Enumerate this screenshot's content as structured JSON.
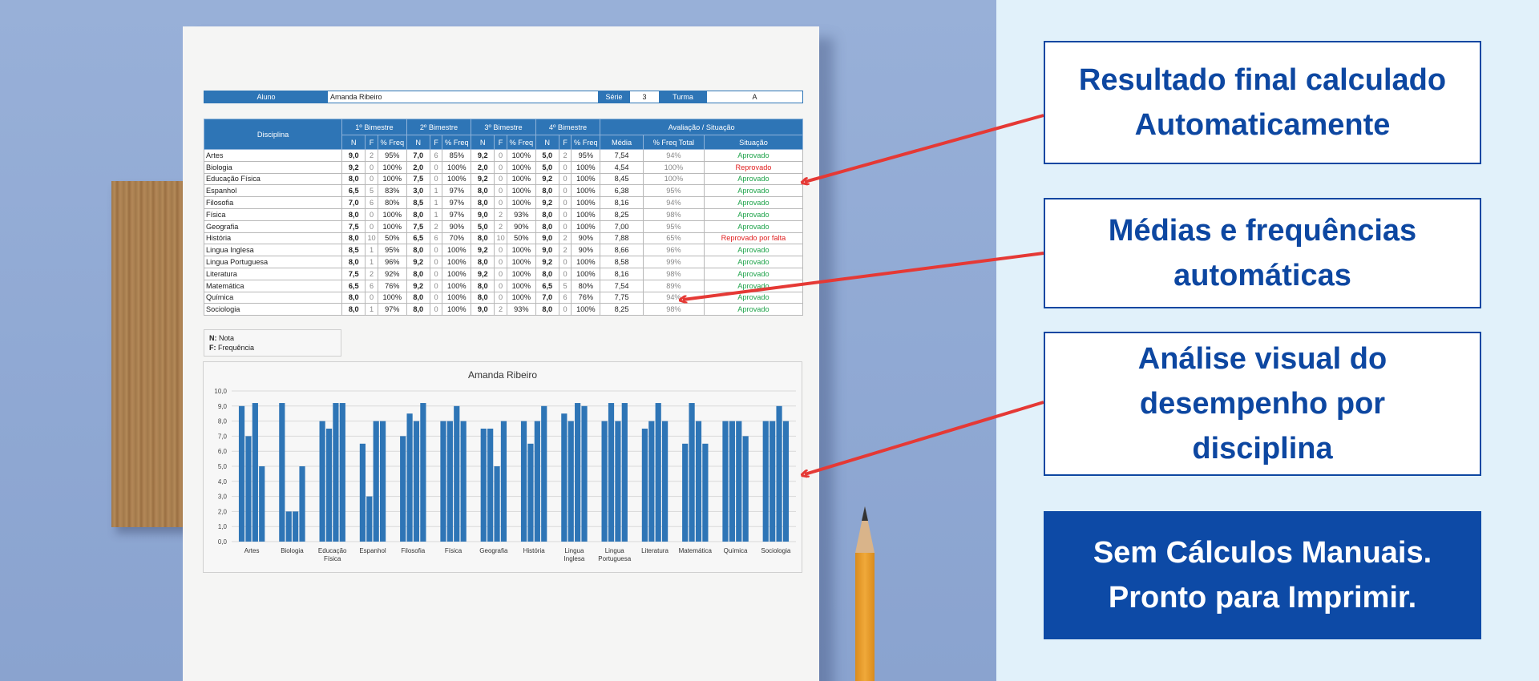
{
  "sheet": {
    "info": {
      "aluno_label": "Aluno",
      "aluno_value": "Amanda Ribeiro",
      "serie_label": "Série",
      "serie_value": "3",
      "turma_label": "Turma",
      "turma_value": "A"
    },
    "headers": {
      "disciplina": "Disciplina",
      "b1": "1º Bimestre",
      "b2": "2º Bimestre",
      "b3": "3º Bimestre",
      "b4": "4º Bimestre",
      "avaliacao": "Avaliação / Situação",
      "n": "N",
      "f": "F",
      "freq": "% Freq",
      "media": "Média",
      "freq_total": "% Freq Total",
      "situacao": "Situação"
    },
    "rows": [
      {
        "disciplina": "Artes",
        "b1": [
          "9,0",
          "2",
          "95%"
        ],
        "b2": [
          "7,0",
          "6",
          "85%"
        ],
        "b3": [
          "9,2",
          "0",
          "100%"
        ],
        "b4": [
          "5,0",
          "2",
          "95%"
        ],
        "media": "7,54",
        "freq_total": "94%",
        "situacao": "Aprovado",
        "status": "ok"
      },
      {
        "disciplina": "Biologia",
        "b1": [
          "9,2",
          "0",
          "100%"
        ],
        "b2": [
          "2,0",
          "0",
          "100%"
        ],
        "b3": [
          "2,0",
          "0",
          "100%"
        ],
        "b4": [
          "5,0",
          "0",
          "100%"
        ],
        "media": "4,54",
        "freq_total": "100%",
        "situacao": "Reprovado",
        "status": "bad"
      },
      {
        "disciplina": "Educação Física",
        "b1": [
          "8,0",
          "0",
          "100%"
        ],
        "b2": [
          "7,5",
          "0",
          "100%"
        ],
        "b3": [
          "9,2",
          "0",
          "100%"
        ],
        "b4": [
          "9,2",
          "0",
          "100%"
        ],
        "media": "8,45",
        "freq_total": "100%",
        "situacao": "Aprovado",
        "status": "ok"
      },
      {
        "disciplina": "Espanhol",
        "b1": [
          "6,5",
          "5",
          "83%"
        ],
        "b2": [
          "3,0",
          "1",
          "97%"
        ],
        "b3": [
          "8,0",
          "0",
          "100%"
        ],
        "b4": [
          "8,0",
          "0",
          "100%"
        ],
        "media": "6,38",
        "freq_total": "95%",
        "situacao": "Aprovado",
        "status": "ok"
      },
      {
        "disciplina": "Filosofia",
        "b1": [
          "7,0",
          "6",
          "80%"
        ],
        "b2": [
          "8,5",
          "1",
          "97%"
        ],
        "b3": [
          "8,0",
          "0",
          "100%"
        ],
        "b4": [
          "9,2",
          "0",
          "100%"
        ],
        "media": "8,16",
        "freq_total": "94%",
        "situacao": "Aprovado",
        "status": "ok"
      },
      {
        "disciplina": "Física",
        "b1": [
          "8,0",
          "0",
          "100%"
        ],
        "b2": [
          "8,0",
          "1",
          "97%"
        ],
        "b3": [
          "9,0",
          "2",
          "93%"
        ],
        "b4": [
          "8,0",
          "0",
          "100%"
        ],
        "media": "8,25",
        "freq_total": "98%",
        "situacao": "Aprovado",
        "status": "ok"
      },
      {
        "disciplina": "Geografia",
        "b1": [
          "7,5",
          "0",
          "100%"
        ],
        "b2": [
          "7,5",
          "2",
          "90%"
        ],
        "b3": [
          "5,0",
          "2",
          "90%"
        ],
        "b4": [
          "8,0",
          "0",
          "100%"
        ],
        "media": "7,00",
        "freq_total": "95%",
        "situacao": "Aprovado",
        "status": "ok"
      },
      {
        "disciplina": "História",
        "b1": [
          "8,0",
          "10",
          "50%"
        ],
        "b2": [
          "6,5",
          "6",
          "70%"
        ],
        "b3": [
          "8,0",
          "10",
          "50%"
        ],
        "b4": [
          "9,0",
          "2",
          "90%"
        ],
        "media": "7,88",
        "freq_total": "65%",
        "situacao": "Reprovado por falta",
        "status": "bad"
      },
      {
        "disciplina": "Lingua Inglesa",
        "b1": [
          "8,5",
          "1",
          "95%"
        ],
        "b2": [
          "8,0",
          "0",
          "100%"
        ],
        "b3": [
          "9,2",
          "0",
          "100%"
        ],
        "b4": [
          "9,0",
          "2",
          "90%"
        ],
        "media": "8,66",
        "freq_total": "96%",
        "situacao": "Aprovado",
        "status": "ok"
      },
      {
        "disciplina": "Lingua Portuguesa",
        "b1": [
          "8,0",
          "1",
          "96%"
        ],
        "b2": [
          "9,2",
          "0",
          "100%"
        ],
        "b3": [
          "8,0",
          "0",
          "100%"
        ],
        "b4": [
          "9,2",
          "0",
          "100%"
        ],
        "media": "8,58",
        "freq_total": "99%",
        "situacao": "Aprovado",
        "status": "ok"
      },
      {
        "disciplina": "Literatura",
        "b1": [
          "7,5",
          "2",
          "92%"
        ],
        "b2": [
          "8,0",
          "0",
          "100%"
        ],
        "b3": [
          "9,2",
          "0",
          "100%"
        ],
        "b4": [
          "8,0",
          "0",
          "100%"
        ],
        "media": "8,16",
        "freq_total": "98%",
        "situacao": "Aprovado",
        "status": "ok"
      },
      {
        "disciplina": "Matemática",
        "b1": [
          "6,5",
          "6",
          "76%"
        ],
        "b2": [
          "9,2",
          "0",
          "100%"
        ],
        "b3": [
          "8,0",
          "0",
          "100%"
        ],
        "b4": [
          "6,5",
          "5",
          "80%"
        ],
        "media": "7,54",
        "freq_total": "89%",
        "situacao": "Aprovado",
        "status": "ok"
      },
      {
        "disciplina": "Química",
        "b1": [
          "8,0",
          "0",
          "100%"
        ],
        "b2": [
          "8,0",
          "0",
          "100%"
        ],
        "b3": [
          "8,0",
          "0",
          "100%"
        ],
        "b4": [
          "7,0",
          "6",
          "76%"
        ],
        "media": "7,75",
        "freq_total": "94%",
        "situacao": "Aprovado",
        "status": "ok"
      },
      {
        "disciplina": "Sociologia",
        "b1": [
          "8,0",
          "1",
          "97%"
        ],
        "b2": [
          "8,0",
          "0",
          "100%"
        ],
        "b3": [
          "9,0",
          "2",
          "93%"
        ],
        "b4": [
          "8,0",
          "0",
          "100%"
        ],
        "media": "8,25",
        "freq_total": "98%",
        "situacao": "Aprovado",
        "status": "ok"
      }
    ],
    "legend": {
      "n_key": "N:",
      "n_text": "Nota",
      "f_key": "F:",
      "f_text": "Frequência"
    }
  },
  "chart_data": {
    "type": "bar",
    "title": "Amanda Ribeiro",
    "categories": [
      "Artes",
      "Biologia",
      "Educação Física",
      "Espanhol",
      "Filosofia",
      "Física",
      "Geografia",
      "História",
      "Lingua Inglesa",
      "Lingua Portuguesa",
      "Literatura",
      "Matemática",
      "Química",
      "Sociologia"
    ],
    "category_lines": [
      [
        "Artes"
      ],
      [
        "Biologia"
      ],
      [
        "Educação",
        "Física"
      ],
      [
        "Espanhol"
      ],
      [
        "Filosofia"
      ],
      [
        "Física"
      ],
      [
        "Geografia"
      ],
      [
        "História"
      ],
      [
        "Lingua",
        "Inglesa"
      ],
      [
        "Lingua",
        "Portuguesa"
      ],
      [
        "Literatura"
      ],
      [
        "Matemática"
      ],
      [
        "Química"
      ],
      [
        "Sociologia"
      ]
    ],
    "series": [
      {
        "values": [
          9.0,
          9.2,
          8.0,
          6.5,
          7.0,
          8.0,
          7.5,
          8.0,
          8.5,
          8.0,
          7.5,
          6.5,
          8.0,
          8.0
        ]
      },
      {
        "values": [
          7.0,
          2.0,
          7.5,
          3.0,
          8.5,
          8.0,
          7.5,
          6.5,
          8.0,
          9.2,
          8.0,
          9.2,
          8.0,
          8.0
        ]
      },
      {
        "values": [
          9.2,
          2.0,
          9.2,
          8.0,
          8.0,
          9.0,
          5.0,
          8.0,
          9.2,
          8.0,
          9.2,
          8.0,
          8.0,
          9.0
        ]
      },
      {
        "values": [
          5.0,
          5.0,
          9.2,
          8.0,
          9.2,
          8.0,
          8.0,
          9.0,
          9.0,
          9.2,
          8.0,
          6.5,
          7.0,
          8.0
        ]
      }
    ],
    "ylim": [
      0,
      10
    ],
    "yticks": [
      "0,0",
      "1,0",
      "2,0",
      "3,0",
      "4,0",
      "5,0",
      "6,0",
      "7,0",
      "8,0",
      "9,0",
      "10,0"
    ],
    "bar_color": "#2e75b6",
    "grid": true
  },
  "callouts": {
    "c1": [
      "Resultado final calculado",
      "Automaticamente"
    ],
    "c2": [
      "Médias e frequências",
      "automáticas"
    ],
    "c3": [
      "Análise visual do",
      "desempenho por",
      "disciplina"
    ],
    "c4": [
      "Sem Cálculos Manuais.",
      "Pronto para Imprimir."
    ]
  },
  "colors": {
    "accent": "#0d47a1",
    "arrow": "#e53935",
    "table_header": "#2e75b6",
    "approved": "#1ea34a",
    "failed": "#e02020"
  }
}
